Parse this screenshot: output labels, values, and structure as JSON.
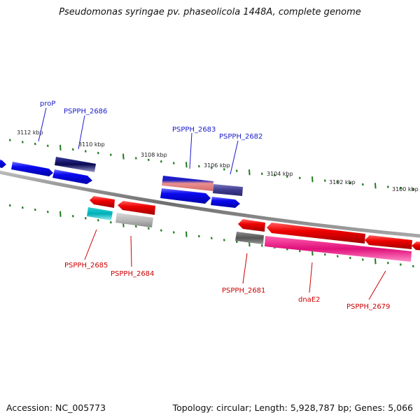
{
  "title": "Pseudomonas syringae pv. phaseolicola 1448A, complete genome",
  "accession": "Accession: NC_005773",
  "summary": "Topology: circular; Length: 5,928,787 bp; Genes: 5,066",
  "colors": {
    "forward_label": "#1a1acc",
    "reverse_label": "#cc0000",
    "backbone": "#808080",
    "ticks": "#1e7a1e"
  },
  "scale_labels": [
    "3112 kbp",
    "3110 kbp",
    "3108 kbp",
    "3106 kbp",
    "3104 kbp",
    "3102 kbp",
    "3100 kbp"
  ],
  "genes": [
    {
      "label": "proP",
      "strand": "forward"
    },
    {
      "label": "PSPPH_2686",
      "strand": "forward"
    },
    {
      "label": "PSPPH_2683",
      "strand": "forward"
    },
    {
      "label": "PSPPH_2682",
      "strand": "forward"
    },
    {
      "label": "PSPPH_2685",
      "strand": "reverse"
    },
    {
      "label": "PSPPH_2684",
      "strand": "reverse"
    },
    {
      "label": "PSPPH_2681",
      "strand": "reverse"
    },
    {
      "label": "dnaE2",
      "strand": "reverse"
    },
    {
      "label": "PSPPH_2679",
      "strand": "reverse"
    }
  ]
}
